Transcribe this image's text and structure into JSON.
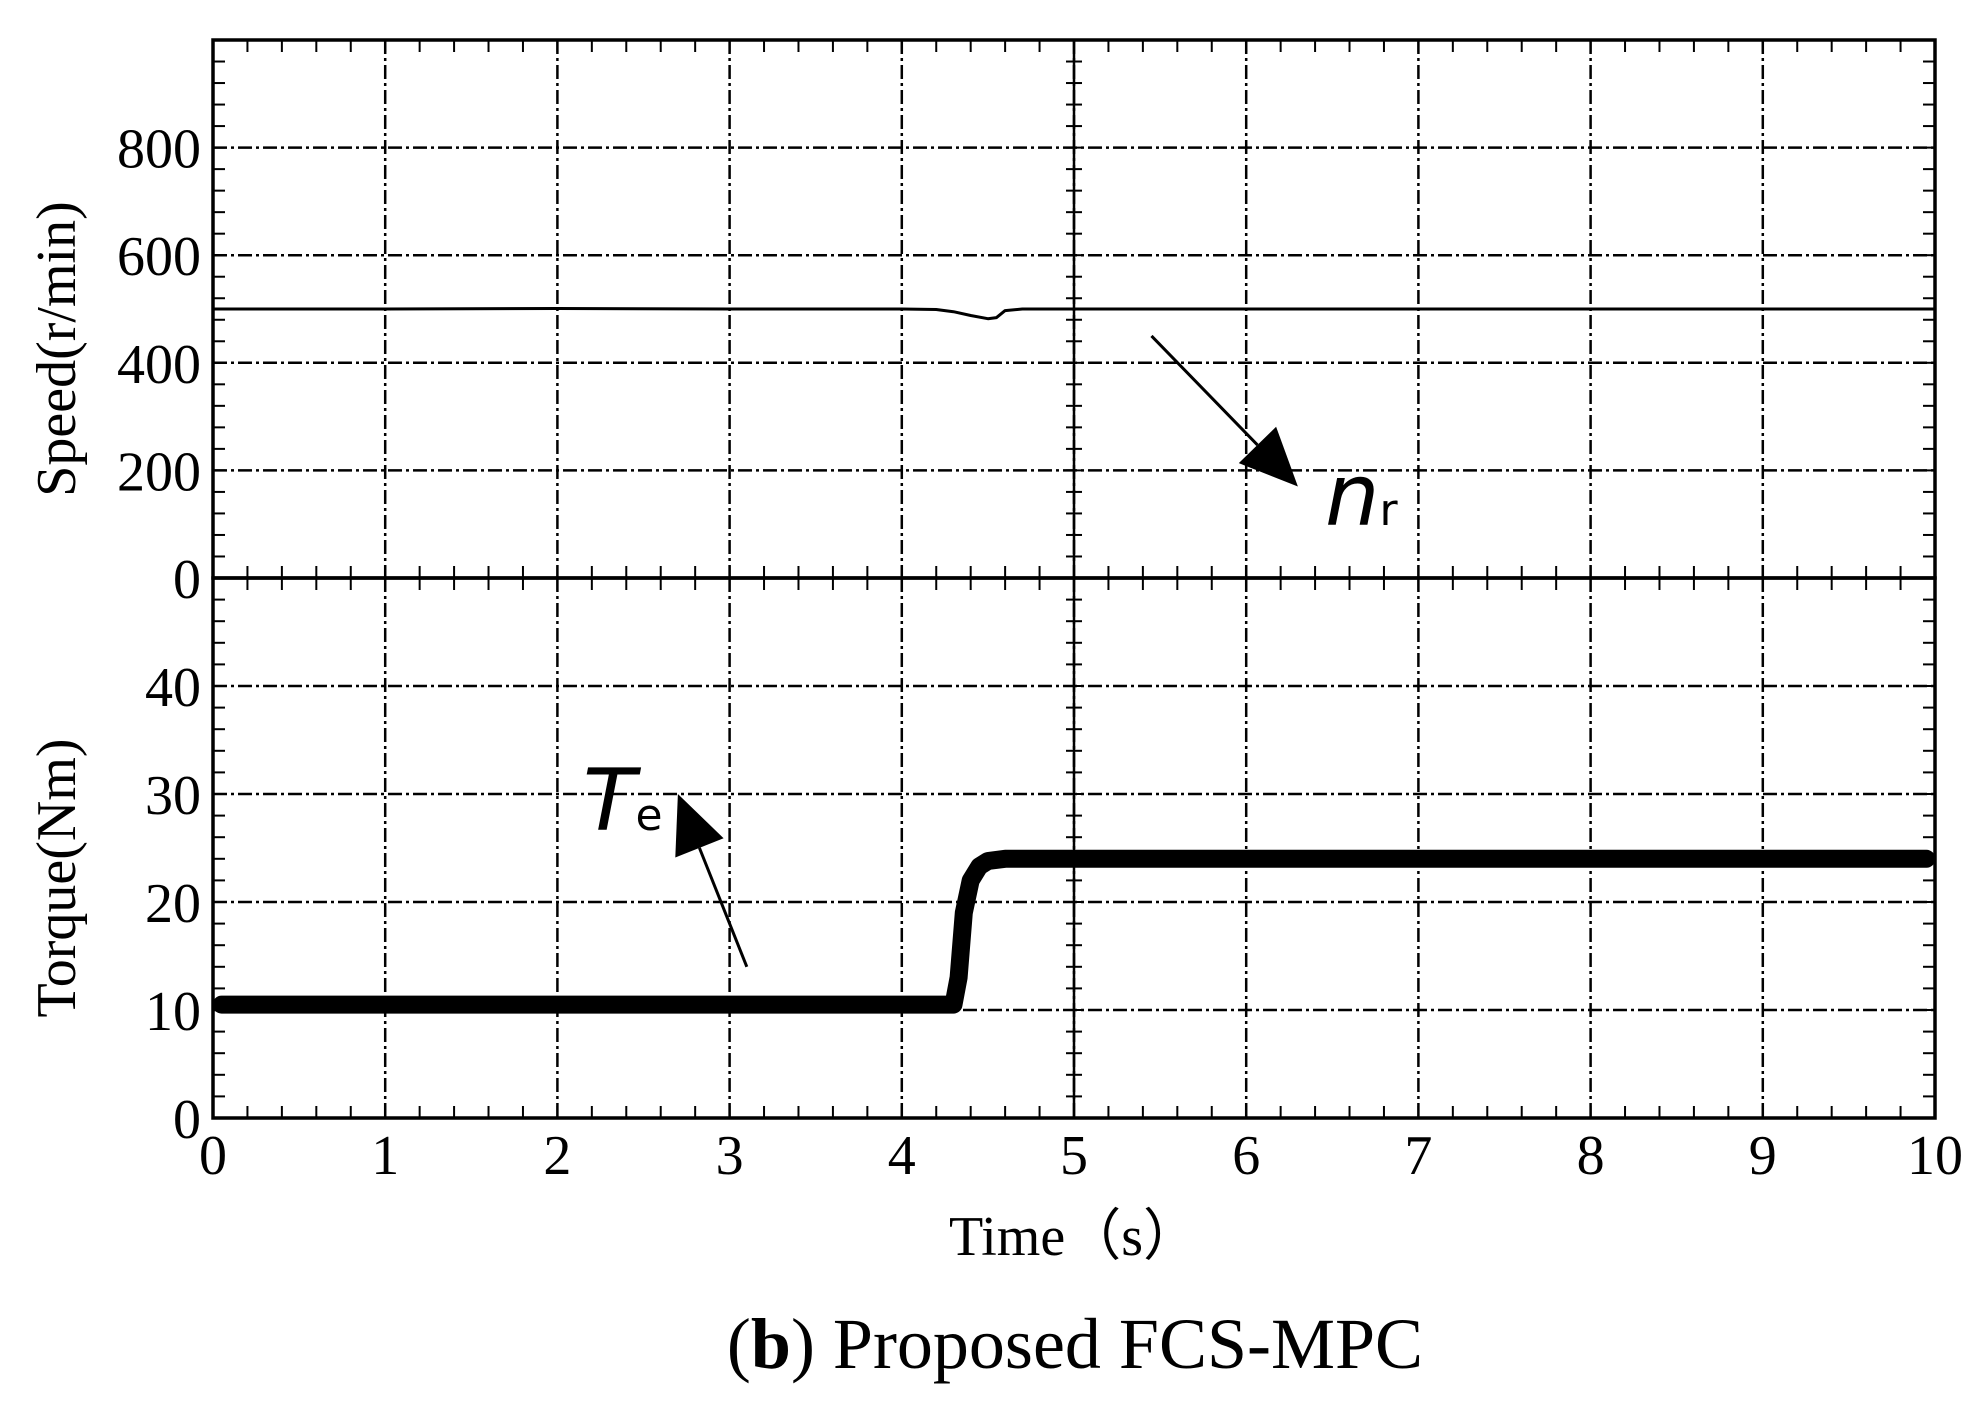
{
  "caption": {
    "prefix": "(",
    "bold": "b",
    "suffix": ") Proposed FCS-MPC"
  },
  "chart_data": [
    {
      "type": "line",
      "panel": "top",
      "ylabel": "Speed(r/min)",
      "xlim": [
        0,
        10
      ],
      "ylim": [
        0,
        1000
      ],
      "yticks": [
        0,
        200,
        400,
        600,
        800
      ],
      "grid": true,
      "series": [
        {
          "x": [
            0,
            1,
            2,
            3,
            4,
            4.2,
            4.3,
            4.4,
            4.5,
            4.55,
            4.6,
            4.7,
            5,
            6,
            7,
            8,
            9,
            10
          ],
          "y": [
            500,
            500,
            501,
            500,
            500,
            499,
            495,
            488,
            482,
            484,
            497,
            500,
            500,
            500,
            500,
            500,
            500,
            500
          ]
        }
      ],
      "annotations": [
        {
          "text": "n",
          "sub": "r",
          "arrow_from": [
            5.45,
            450
          ],
          "arrow_to": [
            6.3,
            170
          ]
        }
      ]
    },
    {
      "type": "line",
      "panel": "bottom",
      "ylabel": "Torque(Nm)",
      "xlabel": "Time（s）",
      "xlim": [
        0,
        10
      ],
      "ylim": [
        0,
        50
      ],
      "yticks": [
        0,
        10,
        20,
        30,
        40
      ],
      "xticks": [
        0,
        1,
        2,
        3,
        4,
        5,
        6,
        7,
        8,
        9,
        10
      ],
      "grid": true,
      "series": [
        {
          "x": [
            0.05,
            1,
            2,
            3,
            4,
            4.3,
            4.33,
            4.36,
            4.4,
            4.45,
            4.5,
            4.6,
            4.7,
            5,
            6,
            7,
            8,
            9,
            9.95
          ],
          "y": [
            10.5,
            10.5,
            10.5,
            10.5,
            10.5,
            10.5,
            13,
            19,
            22,
            23.3,
            23.8,
            24,
            24,
            24,
            24,
            24,
            24,
            24,
            24
          ]
        }
      ],
      "annotations": [
        {
          "text": "T",
          "sub": "e",
          "arrow_from": [
            3.1,
            14
          ],
          "arrow_to": [
            2.7,
            30
          ]
        }
      ]
    }
  ]
}
